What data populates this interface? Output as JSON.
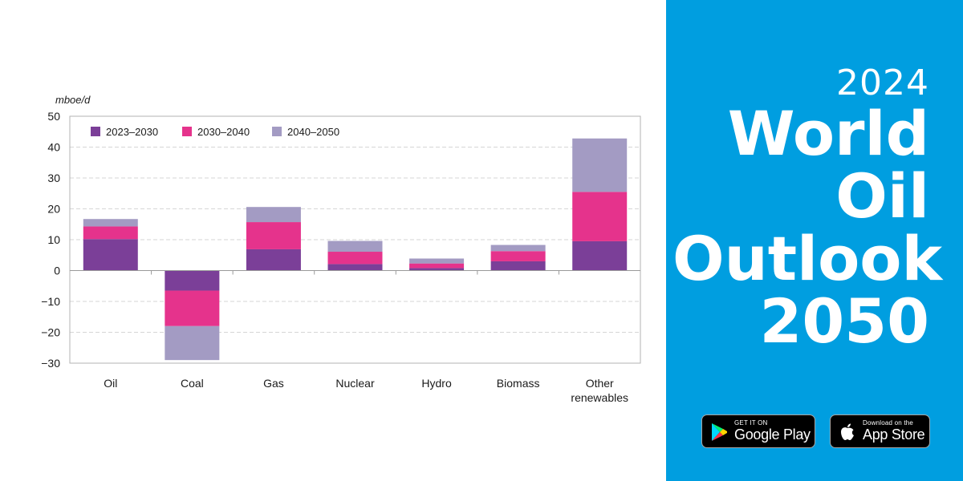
{
  "chart_data": {
    "type": "bar",
    "stacked": true,
    "ylabel": "mboe/d",
    "ylim": [
      -30,
      50
    ],
    "yticks": [
      50,
      40,
      30,
      20,
      10,
      0,
      -10,
      -20,
      -30
    ],
    "grid": true,
    "legend": "top-left",
    "categories": [
      [
        "Oil"
      ],
      [
        "Coal"
      ],
      [
        "Gas"
      ],
      [
        "Nuclear"
      ],
      [
        "Hydro"
      ],
      [
        "Biomass"
      ],
      [
        "Other",
        "renewables"
      ]
    ],
    "series": [
      {
        "name": "2023–2030",
        "color": "#7b3f98",
        "values": [
          10.2,
          -6.5,
          6.9,
          2.1,
          0.8,
          3.0,
          9.5
        ]
      },
      {
        "name": "2030–2040",
        "color": "#e5338c",
        "values": [
          4.1,
          -11.5,
          8.8,
          4.0,
          1.5,
          3.3,
          16.0
        ]
      },
      {
        "name": "2040–2050",
        "color": "#a39bc3",
        "values": [
          2.4,
          -11.0,
          4.9,
          3.5,
          1.6,
          2.0,
          17.3
        ]
      }
    ]
  },
  "brand": {
    "year": "2024",
    "title_lines": [
      "World",
      "Oil",
      "Outlook",
      "2050"
    ]
  },
  "badges": {
    "google": {
      "small": "GET IT ON",
      "big": "Google Play",
      "icon": "play-triangle-icon"
    },
    "apple": {
      "small": "Download on the",
      "big": "App Store",
      "icon": "apple-logo-icon"
    }
  }
}
